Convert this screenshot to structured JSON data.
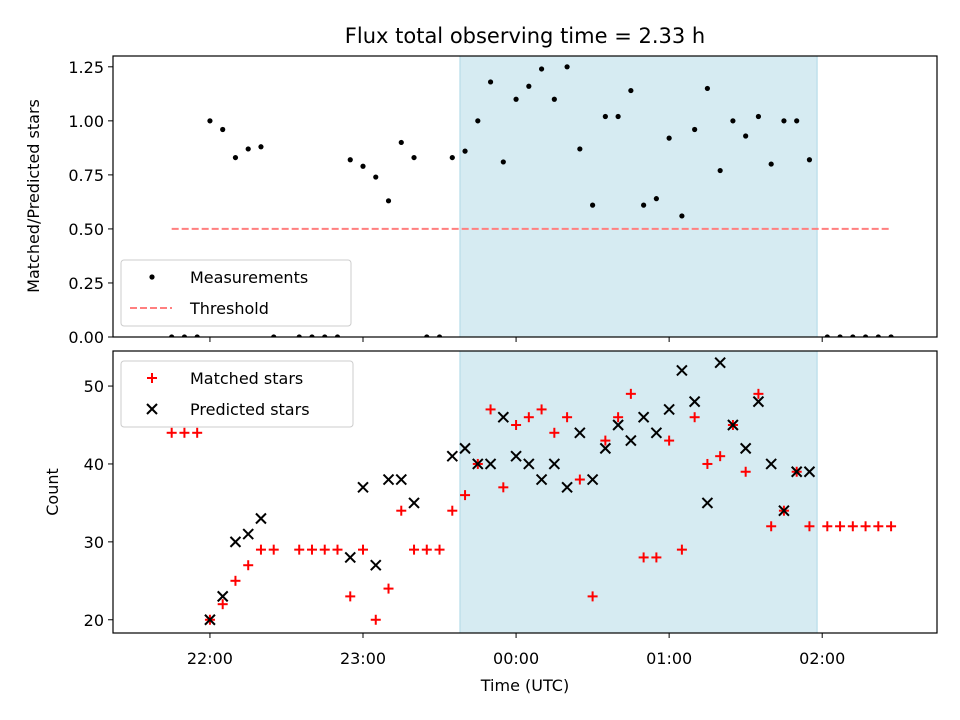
{
  "title": "Flux total observing time = 2.33 h",
  "colors": {
    "band": "#add8e6",
    "measurement": "#000000",
    "threshold": "#ff7f7f",
    "matched": "#ff0000",
    "predicted": "#000000"
  },
  "xaxis": {
    "label": "Time (UTC)",
    "range_minutes_from_00": [
      -158,
      165
    ],
    "ticks": [
      {
        "label": "22:00",
        "min": -120
      },
      {
        "label": "23:00",
        "min": -60
      },
      {
        "label": "00:00",
        "min": 0
      },
      {
        "label": "01:00",
        "min": 60
      },
      {
        "label": "02:00",
        "min": 120
      }
    ]
  },
  "chart_data": [
    {
      "type": "scatter",
      "ylabel": "Matched/Predicted stars",
      "ylim": [
        0,
        1.3
      ],
      "yticks": [
        "0.00",
        "0.25",
        "0.50",
        "0.75",
        "1.00",
        "1.25"
      ],
      "band": {
        "x_from": "23:38",
        "x_to": "01:58"
      },
      "legend": {
        "placement": "lower-left",
        "entries": [
          "Measurements",
          "Threshold"
        ]
      },
      "threshold": {
        "name": "Threshold",
        "y": 0.5,
        "x_from": "21:45",
        "x_to": "02:27"
      },
      "series": [
        {
          "name": "Measurements",
          "points": [
            [
              "21:45",
              0
            ],
            [
              "21:50",
              0
            ],
            [
              "21:55",
              0
            ],
            [
              "22:00",
              1.0
            ],
            [
              "22:05",
              0.96
            ],
            [
              "22:10",
              0.83
            ],
            [
              "22:15",
              0.87
            ],
            [
              "22:20",
              0.88
            ],
            [
              "22:25",
              0
            ],
            [
              "22:35",
              0
            ],
            [
              "22:40",
              0
            ],
            [
              "22:45",
              0
            ],
            [
              "22:50",
              0
            ],
            [
              "22:55",
              0.82
            ],
            [
              "23:00",
              0.79
            ],
            [
              "23:05",
              0.74
            ],
            [
              "23:10",
              0.63
            ],
            [
              "23:15",
              0.9
            ],
            [
              "23:20",
              0.83
            ],
            [
              "23:25",
              0
            ],
            [
              "23:30",
              0
            ],
            [
              "23:35",
              0.83
            ],
            [
              "23:40",
              0.86
            ],
            [
              "23:45",
              1.0
            ],
            [
              "23:50",
              1.18
            ],
            [
              "23:55",
              0.81
            ],
            [
              "00:00",
              1.1
            ],
            [
              "00:05",
              1.16
            ],
            [
              "00:10",
              1.24
            ],
            [
              "00:15",
              1.1
            ],
            [
              "00:20",
              1.25
            ],
            [
              "00:25",
              0.87
            ],
            [
              "00:30",
              0.61
            ],
            [
              "00:35",
              1.02
            ],
            [
              "00:40",
              1.02
            ],
            [
              "00:45",
              1.14
            ],
            [
              "00:50",
              0.61
            ],
            [
              "00:55",
              0.64
            ],
            [
              "01:00",
              0.92
            ],
            [
              "01:05",
              0.56
            ],
            [
              "01:10",
              0.96
            ],
            [
              "01:15",
              1.15
            ],
            [
              "01:20",
              0.77
            ],
            [
              "01:25",
              1.0
            ],
            [
              "01:30",
              0.93
            ],
            [
              "01:35",
              1.02
            ],
            [
              "01:40",
              0.8
            ],
            [
              "01:45",
              1.0
            ],
            [
              "01:50",
              1.0
            ],
            [
              "01:55",
              0.82
            ],
            [
              "02:02",
              0
            ],
            [
              "02:07",
              0
            ],
            [
              "02:12",
              0
            ],
            [
              "02:17",
              0
            ],
            [
              "02:22",
              0
            ],
            [
              "02:27",
              0
            ]
          ]
        }
      ]
    },
    {
      "type": "scatter",
      "ylabel": "Count",
      "ylim": [
        18.3,
        54.5
      ],
      "yticks": [
        "20",
        "30",
        "40",
        "50"
      ],
      "band": {
        "x_from": "23:38",
        "x_to": "01:58"
      },
      "legend": {
        "placement": "upper-left",
        "entries": [
          "Matched stars",
          "Predicted stars"
        ]
      },
      "series": [
        {
          "name": "Matched stars",
          "marker": "plus",
          "points": [
            [
              "21:45",
              44
            ],
            [
              "21:50",
              44
            ],
            [
              "21:55",
              44
            ],
            [
              "22:00",
              20
            ],
            [
              "22:05",
              22
            ],
            [
              "22:10",
              25
            ],
            [
              "22:15",
              27
            ],
            [
              "22:20",
              29
            ],
            [
              "22:25",
              29
            ],
            [
              "22:35",
              29
            ],
            [
              "22:40",
              29
            ],
            [
              "22:45",
              29
            ],
            [
              "22:50",
              29
            ],
            [
              "22:55",
              23
            ],
            [
              "23:00",
              29
            ],
            [
              "23:05",
              20
            ],
            [
              "23:10",
              24
            ],
            [
              "23:15",
              34
            ],
            [
              "23:20",
              29
            ],
            [
              "23:25",
              29
            ],
            [
              "23:30",
              29
            ],
            [
              "23:35",
              34
            ],
            [
              "23:40",
              36
            ],
            [
              "23:45",
              40
            ],
            [
              "23:50",
              47
            ],
            [
              "23:55",
              37
            ],
            [
              "00:00",
              45
            ],
            [
              "00:05",
              46
            ],
            [
              "00:10",
              47
            ],
            [
              "00:15",
              44
            ],
            [
              "00:20",
              46
            ],
            [
              "00:25",
              38
            ],
            [
              "00:30",
              23
            ],
            [
              "00:35",
              43
            ],
            [
              "00:40",
              46
            ],
            [
              "00:45",
              49
            ],
            [
              "00:50",
              28
            ],
            [
              "00:55",
              28
            ],
            [
              "01:00",
              43
            ],
            [
              "01:05",
              29
            ],
            [
              "01:10",
              46
            ],
            [
              "01:15",
              40
            ],
            [
              "01:20",
              41
            ],
            [
              "01:25",
              45
            ],
            [
              "01:30",
              39
            ],
            [
              "01:35",
              49
            ],
            [
              "01:40",
              32
            ],
            [
              "01:45",
              34
            ],
            [
              "01:50",
              39
            ],
            [
              "01:55",
              32
            ],
            [
              "02:02",
              32
            ],
            [
              "02:07",
              32
            ],
            [
              "02:12",
              32
            ],
            [
              "02:17",
              32
            ],
            [
              "02:22",
              32
            ],
            [
              "02:27",
              32
            ]
          ]
        },
        {
          "name": "Predicted stars",
          "marker": "x",
          "points": [
            [
              "22:00",
              20
            ],
            [
              "22:05",
              23
            ],
            [
              "22:10",
              30
            ],
            [
              "22:15",
              31
            ],
            [
              "22:20",
              33
            ],
            [
              "22:55",
              28
            ],
            [
              "23:00",
              37
            ],
            [
              "23:05",
              27
            ],
            [
              "23:10",
              38
            ],
            [
              "23:15",
              38
            ],
            [
              "23:20",
              35
            ],
            [
              "23:35",
              41
            ],
            [
              "23:40",
              42
            ],
            [
              "23:45",
              40
            ],
            [
              "23:50",
              40
            ],
            [
              "23:55",
              46
            ],
            [
              "00:00",
              41
            ],
            [
              "00:05",
              40
            ],
            [
              "00:10",
              38
            ],
            [
              "00:15",
              40
            ],
            [
              "00:20",
              37
            ],
            [
              "00:25",
              44
            ],
            [
              "00:30",
              38
            ],
            [
              "00:35",
              42
            ],
            [
              "00:40",
              45
            ],
            [
              "00:45",
              43
            ],
            [
              "00:50",
              46
            ],
            [
              "00:55",
              44
            ],
            [
              "01:00",
              47
            ],
            [
              "01:05",
              52
            ],
            [
              "01:10",
              48
            ],
            [
              "01:15",
              35
            ],
            [
              "01:20",
              53
            ],
            [
              "01:25",
              45
            ],
            [
              "01:30",
              42
            ],
            [
              "01:35",
              48
            ],
            [
              "01:40",
              40
            ],
            [
              "01:45",
              34
            ],
            [
              "01:50",
              39
            ],
            [
              "01:55",
              39
            ]
          ]
        }
      ]
    }
  ]
}
